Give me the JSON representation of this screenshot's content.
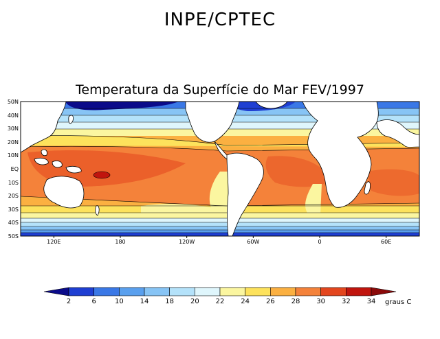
{
  "header": {
    "title": "INPE/CPTEC",
    "subtitle": "Temperatura da Superfície do Mar FEV/1997"
  },
  "map": {
    "lat_labels": [
      "50N",
      "40N",
      "30N",
      "20N",
      "10N",
      "EQ",
      "10S",
      "20S",
      "30S",
      "40S",
      "50S"
    ],
    "lon_labels": [
      "120E",
      "180",
      "120W",
      "60W",
      "0",
      "60E"
    ],
    "lon_values": [
      120,
      180,
      240,
      300,
      360,
      420
    ],
    "lon_range": [
      90,
      450
    ],
    "lat_range": [
      -50,
      50
    ],
    "land_color": "#ffffff"
  },
  "colorbar": {
    "levels": [
      "2",
      "6",
      "10",
      "14",
      "18",
      "20",
      "22",
      "24",
      "26",
      "28",
      "30",
      "32",
      "34"
    ],
    "units": "graus C",
    "colors": [
      "#0b0b8a",
      "#1f3fd2",
      "#3a78e6",
      "#5aa0ee",
      "#87c4f5",
      "#b4e2fa",
      "#dff6fc",
      "#fbf6a0",
      "#fde25c",
      "#fbb041",
      "#f4823a",
      "#e3461e",
      "#c0150e",
      "#8b0a0a"
    ]
  }
}
